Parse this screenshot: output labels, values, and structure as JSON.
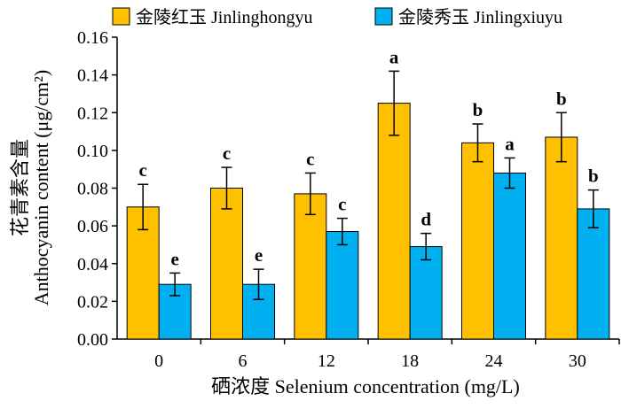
{
  "chart_data": {
    "type": "bar",
    "categories": [
      "0",
      "6",
      "12",
      "18",
      "24",
      "30"
    ],
    "series": [
      {
        "name": "金陵红玉 Jinlinghongyu",
        "color": "#FFC000",
        "values": [
          0.07,
          0.08,
          0.077,
          0.125,
          0.104,
          0.107
        ],
        "errors": [
          0.012,
          0.011,
          0.011,
          0.017,
          0.01,
          0.013
        ],
        "letters": [
          "c",
          "c",
          "c",
          "a",
          "b",
          "b"
        ]
      },
      {
        "name": "金陵秀玉 Jinlingxiuyu",
        "color": "#00B0F0",
        "values": [
          0.029,
          0.029,
          0.057,
          0.049,
          0.088,
          0.069
        ],
        "errors": [
          0.006,
          0.008,
          0.007,
          0.007,
          0.008,
          0.01
        ],
        "letters": [
          "e",
          "e",
          "c",
          "d",
          "a",
          "b"
        ]
      }
    ],
    "xlabel": "硒浓度 Selenium concentration (mg/L)",
    "ylabel_cn": "花青素含量",
    "ylabel_en": "Anthocyanin content (μg/cm²)",
    "ylim": [
      0,
      0.16
    ],
    "yticks": [
      "0.00",
      "0.02",
      "0.04",
      "0.06",
      "0.08",
      "0.10",
      "0.12",
      "0.14",
      "0.16"
    ],
    "legend_position": "top",
    "grid": false
  }
}
